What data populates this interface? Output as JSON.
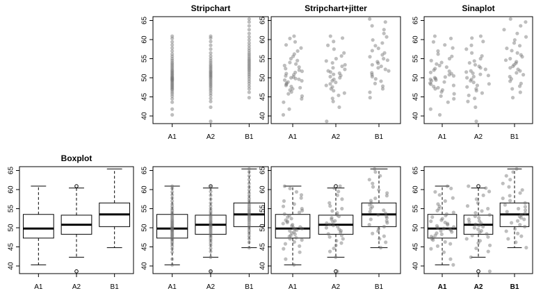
{
  "figure": {
    "point_color": "#6e6e6e",
    "point_opacity": 0.45,
    "box_fill": "#ffffff",
    "line_color": "#000000"
  },
  "chart_data": [
    {
      "type": "scatter",
      "title": "Stripchart",
      "categories": [
        "A1",
        "A2",
        "B1"
      ],
      "ylim": [
        38,
        66
      ],
      "yticks": [
        40,
        45,
        50,
        55,
        60,
        65
      ],
      "jitter": 0,
      "show_box": false,
      "show_points": true,
      "bold_xticks": false,
      "series": [
        {
          "name": "A1",
          "values": [
            40.3,
            41.8,
            43.6,
            44.5,
            45.2,
            45.8,
            46.3,
            46.8,
            47.1,
            47.4,
            47.7,
            48.0,
            48.3,
            48.6,
            48.9,
            49.2,
            49.4,
            49.6,
            49.8,
            50.0,
            50.2,
            50.5,
            50.8,
            51.1,
            51.4,
            51.7,
            52.0,
            52.4,
            52.8,
            53.2,
            53.6,
            54.0,
            54.5,
            55.0,
            55.6,
            56.2,
            57.0,
            57.8,
            58.6,
            59.4,
            60.3,
            60.9
          ]
        },
        {
          "name": "A2",
          "values": [
            38.6,
            42.3,
            43.8,
            44.6,
            45.4,
            46.0,
            46.6,
            47.1,
            47.6,
            48.0,
            48.4,
            48.8,
            49.2,
            49.6,
            50.0,
            50.3,
            50.6,
            50.9,
            51.2,
            51.5,
            51.8,
            52.2,
            52.6,
            53.0,
            53.4,
            53.9,
            54.4,
            55.0,
            55.7,
            56.5,
            57.5,
            58.5,
            59.5,
            60.4,
            60.9
          ]
        },
        {
          "name": "B1",
          "values": [
            44.8,
            46.2,
            47.1,
            47.8,
            48.5,
            49.1,
            49.7,
            50.3,
            50.8,
            51.3,
            51.8,
            52.2,
            52.6,
            53.0,
            53.4,
            53.8,
            54.2,
            54.6,
            55.0,
            55.5,
            56.0,
            56.5,
            57.1,
            57.7,
            58.4,
            59.1,
            59.9,
            60.7,
            61.6,
            62.6,
            63.6,
            64.6,
            65.4
          ]
        }
      ]
    },
    {
      "type": "scatter",
      "title": "Stripchart+jitter",
      "categories": [
        "A1",
        "A2",
        "B1"
      ],
      "ylim": [
        38,
        66
      ],
      "yticks": [
        40,
        45,
        50,
        55,
        60,
        65
      ],
      "jitter": 0.3,
      "show_box": false,
      "show_points": true,
      "bold_xticks": false,
      "series": [
        {
          "name": "A1",
          "values": [
            40.3,
            41.8,
            43.6,
            44.5,
            45.2,
            45.8,
            46.3,
            46.8,
            47.1,
            47.4,
            47.7,
            48.0,
            48.3,
            48.6,
            48.9,
            49.2,
            49.4,
            49.6,
            49.8,
            50.0,
            50.2,
            50.5,
            50.8,
            51.1,
            51.4,
            51.7,
            52.0,
            52.4,
            52.8,
            53.2,
            53.6,
            54.0,
            54.5,
            55.0,
            55.6,
            56.2,
            57.0,
            57.8,
            58.6,
            59.4,
            60.3,
            60.9
          ]
        },
        {
          "name": "A2",
          "values": [
            38.6,
            42.3,
            43.8,
            44.6,
            45.4,
            46.0,
            46.6,
            47.1,
            47.6,
            48.0,
            48.4,
            48.8,
            49.2,
            49.6,
            50.0,
            50.3,
            50.6,
            50.9,
            51.2,
            51.5,
            51.8,
            52.2,
            52.6,
            53.0,
            53.4,
            53.9,
            54.4,
            55.0,
            55.7,
            56.5,
            57.5,
            58.5,
            59.5,
            60.4,
            60.9
          ]
        },
        {
          "name": "B1",
          "values": [
            44.8,
            46.2,
            47.1,
            47.8,
            48.5,
            49.1,
            49.7,
            50.3,
            50.8,
            51.3,
            51.8,
            52.2,
            52.6,
            53.0,
            53.4,
            53.8,
            54.2,
            54.6,
            55.0,
            55.5,
            56.0,
            56.5,
            57.1,
            57.7,
            58.4,
            59.1,
            59.9,
            60.7,
            61.6,
            62.6,
            63.6,
            64.6,
            65.4
          ]
        }
      ]
    },
    {
      "type": "scatter",
      "title": "Sinaplot",
      "categories": [
        "A1",
        "A2",
        "B1"
      ],
      "ylim": [
        38,
        66
      ],
      "yticks": [
        40,
        45,
        50,
        55,
        60,
        65
      ],
      "jitter": 0.45,
      "show_box": false,
      "show_points": true,
      "bold_xticks": false,
      "series": [
        {
          "name": "A1",
          "values": [
            40.3,
            41.8,
            43.6,
            44.5,
            45.2,
            45.8,
            46.3,
            46.8,
            47.1,
            47.4,
            47.7,
            48.0,
            48.3,
            48.6,
            48.9,
            49.2,
            49.4,
            49.6,
            49.8,
            50.0,
            50.2,
            50.5,
            50.8,
            51.1,
            51.4,
            51.7,
            52.0,
            52.4,
            52.8,
            53.2,
            53.6,
            54.0,
            54.5,
            55.0,
            55.6,
            56.2,
            57.0,
            57.8,
            58.6,
            59.4,
            60.3,
            60.9
          ]
        },
        {
          "name": "A2",
          "values": [
            38.6,
            42.3,
            43.8,
            44.6,
            45.4,
            46.0,
            46.6,
            47.1,
            47.6,
            48.0,
            48.4,
            48.8,
            49.2,
            49.6,
            50.0,
            50.3,
            50.6,
            50.9,
            51.2,
            51.5,
            51.8,
            52.2,
            52.6,
            53.0,
            53.4,
            53.9,
            54.4,
            55.0,
            55.7,
            56.5,
            57.5,
            58.5,
            59.5,
            60.4,
            60.9
          ]
        },
        {
          "name": "B1",
          "values": [
            44.8,
            46.2,
            47.1,
            47.8,
            48.5,
            49.1,
            49.7,
            50.3,
            50.8,
            51.3,
            51.8,
            52.2,
            52.6,
            53.0,
            53.4,
            53.8,
            54.2,
            54.6,
            55.0,
            55.5,
            56.0,
            56.5,
            57.1,
            57.7,
            58.4,
            59.1,
            59.9,
            60.7,
            61.6,
            62.6,
            63.6,
            64.6,
            65.4
          ]
        }
      ]
    },
    {
      "type": "box",
      "title": "Boxplot",
      "categories": [
        "A1",
        "A2",
        "B1"
      ],
      "ylim": [
        38,
        66
      ],
      "yticks": [
        40,
        45,
        50,
        55,
        60,
        65
      ],
      "jitter": 0,
      "show_box": true,
      "show_points": false,
      "bold_xticks": false,
      "boxes": [
        {
          "name": "A1",
          "min": 40.3,
          "q1": 47.3,
          "median": 49.8,
          "q3": 53.5,
          "max": 60.9,
          "outliers": []
        },
        {
          "name": "A2",
          "min": 42.3,
          "q1": 48.3,
          "median": 50.8,
          "q3": 53.3,
          "max": 60.4,
          "outliers": [
            38.6,
            60.9
          ]
        },
        {
          "name": "B1",
          "min": 44.8,
          "q1": 50.3,
          "median": 53.5,
          "q3": 56.5,
          "max": 65.4,
          "outliers": []
        }
      ]
    },
    {
      "type": "box",
      "title": "",
      "categories": [
        "A1",
        "A2",
        "B1"
      ],
      "ylim": [
        38,
        66
      ],
      "yticks": [
        40,
        45,
        50,
        55,
        60,
        65
      ],
      "jitter": 0,
      "show_box": true,
      "show_points": true,
      "bold_xticks": false,
      "boxes": [
        {
          "name": "A1",
          "min": 40.3,
          "q1": 47.3,
          "median": 49.8,
          "q3": 53.5,
          "max": 60.9,
          "outliers": []
        },
        {
          "name": "A2",
          "min": 42.3,
          "q1": 48.3,
          "median": 50.8,
          "q3": 53.3,
          "max": 60.4,
          "outliers": [
            38.6,
            60.9
          ]
        },
        {
          "name": "B1",
          "min": 44.8,
          "q1": 50.3,
          "median": 53.5,
          "q3": 56.5,
          "max": 65.4,
          "outliers": []
        }
      ],
      "series": [
        {
          "name": "A1",
          "values": [
            40.3,
            41.8,
            43.6,
            44.5,
            45.2,
            45.8,
            46.3,
            46.8,
            47.1,
            47.4,
            47.7,
            48.0,
            48.3,
            48.6,
            48.9,
            49.2,
            49.4,
            49.6,
            49.8,
            50.0,
            50.2,
            50.5,
            50.8,
            51.1,
            51.4,
            51.7,
            52.0,
            52.4,
            52.8,
            53.2,
            53.6,
            54.0,
            54.5,
            55.0,
            55.6,
            56.2,
            57.0,
            57.8,
            58.6,
            59.4,
            60.3,
            60.9
          ]
        },
        {
          "name": "A2",
          "values": [
            38.6,
            42.3,
            43.8,
            44.6,
            45.4,
            46.0,
            46.6,
            47.1,
            47.6,
            48.0,
            48.4,
            48.8,
            49.2,
            49.6,
            50.0,
            50.3,
            50.6,
            50.9,
            51.2,
            51.5,
            51.8,
            52.2,
            52.6,
            53.0,
            53.4,
            53.9,
            54.4,
            55.0,
            55.7,
            56.5,
            57.5,
            58.5,
            59.5,
            60.4,
            60.9
          ]
        },
        {
          "name": "B1",
          "values": [
            44.8,
            46.2,
            47.1,
            47.8,
            48.5,
            49.1,
            49.7,
            50.3,
            50.8,
            51.3,
            51.8,
            52.2,
            52.6,
            53.0,
            53.4,
            53.8,
            54.2,
            54.6,
            55.0,
            55.5,
            56.0,
            56.5,
            57.1,
            57.7,
            58.4,
            59.1,
            59.9,
            60.7,
            61.6,
            62.6,
            63.6,
            64.6,
            65.4
          ]
        }
      ]
    },
    {
      "type": "box",
      "title": "",
      "categories": [
        "A1",
        "A2",
        "B1"
      ],
      "ylim": [
        38,
        66
      ],
      "yticks": [
        40,
        45,
        50,
        55,
        60,
        65
      ],
      "jitter": 0.3,
      "show_box": true,
      "show_points": true,
      "bold_xticks": false,
      "boxes": [
        {
          "name": "A1",
          "min": 40.3,
          "q1": 47.3,
          "median": 49.8,
          "q3": 53.5,
          "max": 60.9,
          "outliers": []
        },
        {
          "name": "A2",
          "min": 42.3,
          "q1": 48.3,
          "median": 50.8,
          "q3": 53.3,
          "max": 60.4,
          "outliers": [
            38.6,
            60.9
          ]
        },
        {
          "name": "B1",
          "min": 44.8,
          "q1": 50.3,
          "median": 53.5,
          "q3": 56.5,
          "max": 65.4,
          "outliers": []
        }
      ],
      "series": [
        {
          "name": "A1",
          "values": [
            40.3,
            41.8,
            43.6,
            44.5,
            45.2,
            45.8,
            46.3,
            46.8,
            47.1,
            47.4,
            47.7,
            48.0,
            48.3,
            48.6,
            48.9,
            49.2,
            49.4,
            49.6,
            49.8,
            50.0,
            50.2,
            50.5,
            50.8,
            51.1,
            51.4,
            51.7,
            52.0,
            52.4,
            52.8,
            53.2,
            53.6,
            54.0,
            54.5,
            55.0,
            55.6,
            56.2,
            57.0,
            57.8,
            58.6,
            59.4,
            60.3,
            60.9
          ]
        },
        {
          "name": "A2",
          "values": [
            38.6,
            42.3,
            43.8,
            44.6,
            45.4,
            46.0,
            46.6,
            47.1,
            47.6,
            48.0,
            48.4,
            48.8,
            49.2,
            49.6,
            50.0,
            50.3,
            50.6,
            50.9,
            51.2,
            51.5,
            51.8,
            52.2,
            52.6,
            53.0,
            53.4,
            53.9,
            54.4,
            55.0,
            55.7,
            56.5,
            57.5,
            58.5,
            59.5,
            60.4,
            60.9
          ]
        },
        {
          "name": "B1",
          "values": [
            44.8,
            46.2,
            47.1,
            47.8,
            48.5,
            49.1,
            49.7,
            50.3,
            50.8,
            51.3,
            51.8,
            52.2,
            52.6,
            53.0,
            53.4,
            53.8,
            54.2,
            54.6,
            55.0,
            55.5,
            56.0,
            56.5,
            57.1,
            57.7,
            58.4,
            59.1,
            59.9,
            60.7,
            61.6,
            62.6,
            63.6,
            64.6,
            65.4
          ]
        }
      ]
    },
    {
      "type": "box",
      "title": "",
      "categories": [
        "A1",
        "A2",
        "B1"
      ],
      "ylim": [
        38,
        66
      ],
      "yticks": [
        40,
        45,
        50,
        55,
        60,
        65
      ],
      "jitter": 0.45,
      "show_box": true,
      "show_points": true,
      "bold_xticks": true,
      "boxes": [
        {
          "name": "A1",
          "min": 40.3,
          "q1": 47.3,
          "median": 49.8,
          "q3": 53.5,
          "max": 60.9,
          "outliers": []
        },
        {
          "name": "A2",
          "min": 42.3,
          "q1": 48.3,
          "median": 50.8,
          "q3": 53.3,
          "max": 60.4,
          "outliers": [
            38.6,
            60.9
          ]
        },
        {
          "name": "B1",
          "min": 44.8,
          "q1": 50.3,
          "median": 53.5,
          "q3": 56.5,
          "max": 65.4,
          "outliers": []
        }
      ],
      "series": [
        {
          "name": "A1",
          "values": [
            40.3,
            41.8,
            43.6,
            44.5,
            45.2,
            45.8,
            46.3,
            46.8,
            47.1,
            47.4,
            47.7,
            48.0,
            48.3,
            48.6,
            48.9,
            49.2,
            49.4,
            49.6,
            49.8,
            50.0,
            50.2,
            50.5,
            50.8,
            51.1,
            51.4,
            51.7,
            52.0,
            52.4,
            52.8,
            53.2,
            53.6,
            54.0,
            54.5,
            55.0,
            55.6,
            56.2,
            57.0,
            57.8,
            58.6,
            59.4,
            60.3,
            60.9
          ]
        },
        {
          "name": "A2",
          "values": [
            38.6,
            42.3,
            43.8,
            44.6,
            45.4,
            46.0,
            46.6,
            47.1,
            47.6,
            48.0,
            48.4,
            48.8,
            49.2,
            49.6,
            50.0,
            50.3,
            50.6,
            50.9,
            51.2,
            51.5,
            51.8,
            52.2,
            52.6,
            53.0,
            53.4,
            53.9,
            54.4,
            55.0,
            55.7,
            56.5,
            57.5,
            58.5,
            59.5,
            60.4,
            60.9
          ]
        },
        {
          "name": "B1",
          "values": [
            44.8,
            46.2,
            47.1,
            47.8,
            48.5,
            49.1,
            49.7,
            50.3,
            50.8,
            51.3,
            51.8,
            52.2,
            52.6,
            53.0,
            53.4,
            53.8,
            54.2,
            54.6,
            55.0,
            55.5,
            56.0,
            56.5,
            57.1,
            57.7,
            58.4,
            59.1,
            59.9,
            60.7,
            61.6,
            62.6,
            63.6,
            64.6,
            65.4
          ]
        }
      ]
    }
  ]
}
